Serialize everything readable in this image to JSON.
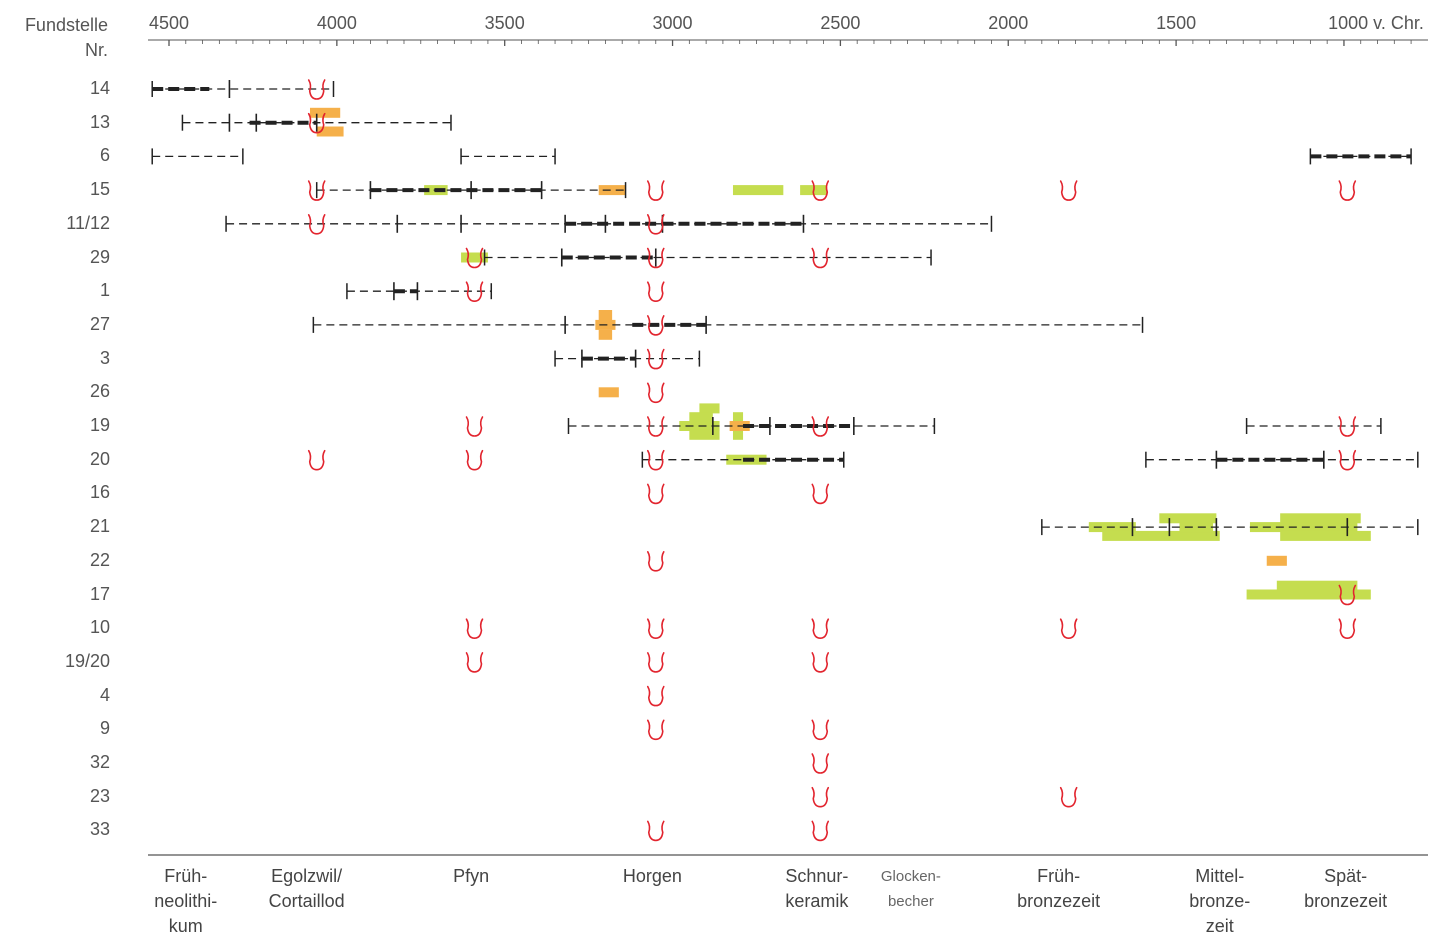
{
  "header": {
    "site_label": "Fundstelle",
    "nr_label": "Nr."
  },
  "axis": {
    "ticks": [
      {
        "year": 4500,
        "label": "4500"
      },
      {
        "year": 4000,
        "label": "4000"
      },
      {
        "year": 3500,
        "label": "3500"
      },
      {
        "year": 3000,
        "label": "3000"
      },
      {
        "year": 2500,
        "label": "2500"
      },
      {
        "year": 2000,
        "label": "2000"
      },
      {
        "year": 1500,
        "label": "1500"
      },
      {
        "year": 1000,
        "label": "1000 v. Chr."
      }
    ]
  },
  "rows": [
    {
      "id": "14",
      "label": "14"
    },
    {
      "id": "13",
      "label": "13"
    },
    {
      "id": "6",
      "label": "6"
    },
    {
      "id": "15",
      "label": "15"
    },
    {
      "id": "11/12",
      "label": "11/12"
    },
    {
      "id": "29",
      "label": "29"
    },
    {
      "id": "1",
      "label": "1"
    },
    {
      "id": "27",
      "label": "27"
    },
    {
      "id": "3",
      "label": "3"
    },
    {
      "id": "26",
      "label": "26"
    },
    {
      "id": "19",
      "label": "19"
    },
    {
      "id": "20",
      "label": "20"
    },
    {
      "id": "16",
      "label": "16"
    },
    {
      "id": "21",
      "label": "21"
    },
    {
      "id": "22",
      "label": "22"
    },
    {
      "id": "17",
      "label": "17"
    },
    {
      "id": "10",
      "label": "10"
    },
    {
      "id": "19/20",
      "label": "19/20"
    },
    {
      "id": "4",
      "label": "4"
    },
    {
      "id": "9",
      "label": "9"
    },
    {
      "id": "32",
      "label": "32"
    },
    {
      "id": "23",
      "label": "23"
    },
    {
      "id": "33",
      "label": "33"
    }
  ],
  "periods": [
    {
      "label": "Früh-\nneolithi-\nkum",
      "year": 4450,
      "small": false
    },
    {
      "label": "Egolzwil/\nCortaillod",
      "year": 4090,
      "small": false
    },
    {
      "label": "Pfyn",
      "year": 3600,
      "small": false
    },
    {
      "label": "Horgen",
      "year": 3060,
      "small": false
    },
    {
      "label": "Schnur-\nkeramik",
      "year": 2570,
      "small": false
    },
    {
      "label": "Glocken-\nbecher",
      "year": 2290,
      "small": true
    },
    {
      "label": "Früh-\nbronzezeit",
      "year": 1850,
      "small": false
    },
    {
      "label": "Mittel-\nbronze-\nzeit",
      "year": 1370,
      "small": false
    },
    {
      "label": "Spät-\nbronzezeit",
      "year": 995,
      "small": false
    }
  ],
  "colors": {
    "range": "#222222",
    "vessel": "#e2242e",
    "dendro_orange": "#f5b04a",
    "dendro_green": "#c5dd4f"
  },
  "ranges": [
    {
      "row": 0,
      "from": 4550,
      "to": 4010,
      "ticks": [
        4320
      ],
      "thick": [
        [
          4550,
          4380
        ]
      ]
    },
    {
      "row": 1,
      "from": 4460,
      "to": 3660,
      "ticks": [
        4320,
        4240,
        4060
      ],
      "thick": [
        [
          4260,
          4060
        ]
      ]
    },
    {
      "row": 2,
      "from": 4550,
      "to": 4280,
      "ticks": [],
      "thick": []
    },
    {
      "row": 2,
      "from": 3630,
      "to": 3350,
      "ticks": [],
      "thick": []
    },
    {
      "row": 2,
      "from": 1100,
      "to": 800,
      "ticks": [],
      "thick": [
        [
          1100,
          800
        ]
      ]
    },
    {
      "row": 3,
      "from": 4060,
      "to": 3140,
      "ticks": [
        3900,
        3600,
        3390
      ],
      "thick": [
        [
          3900,
          3390
        ]
      ]
    },
    {
      "row": 4,
      "from": 4330,
      "to": 2050,
      "ticks": [
        3820,
        3630,
        3320,
        3200,
        3030,
        2610
      ],
      "thick": [
        [
          3320,
          3030
        ],
        [
          3030,
          2610
        ]
      ]
    },
    {
      "row": 5,
      "from": 3560,
      "to": 2230,
      "ticks": [
        3330,
        3050
      ],
      "thick": [
        [
          3330,
          3050
        ]
      ]
    },
    {
      "row": 6,
      "from": 3970,
      "to": 3540,
      "ticks": [
        3830,
        3760
      ],
      "thick": [
        [
          3830,
          3760
        ]
      ]
    },
    {
      "row": 7,
      "from": 4070,
      "to": 1600,
      "ticks": [
        3320,
        2900
      ],
      "thick": [
        [
          3120,
          2900
        ]
      ]
    },
    {
      "row": 8,
      "from": 3350,
      "to": 2920,
      "ticks": [
        3270,
        3110
      ],
      "thick": [
        [
          3270,
          3110
        ]
      ]
    },
    {
      "row": 10,
      "from": 3310,
      "to": 2220,
      "ticks": [
        2880,
        2710,
        2460
      ],
      "thick": [
        [
          2790,
          2460
        ]
      ]
    },
    {
      "row": 10,
      "from": 1290,
      "to": 890,
      "ticks": [],
      "thick": []
    },
    {
      "row": 11,
      "from": 3090,
      "to": 2490,
      "ticks": [],
      "thick": [
        [
          2790,
          2490
        ]
      ]
    },
    {
      "row": 11,
      "from": 1590,
      "to": 780,
      "ticks": [
        1380,
        1060
      ],
      "thick": [
        [
          1380,
          1060
        ]
      ]
    },
    {
      "row": 13,
      "from": 1900,
      "to": 780,
      "ticks": [
        1630,
        1520,
        1380,
        990
      ],
      "thick": []
    }
  ],
  "dendro_bars": [
    {
      "row": 1,
      "from": 4080,
      "to": 3990,
      "offset": -0.45,
      "color": "orange"
    },
    {
      "row": 1,
      "from": 4060,
      "to": 3980,
      "offset": 0.4,
      "color": "orange"
    },
    {
      "row": 3,
      "from": 3220,
      "to": 3140,
      "offset": 0,
      "color": "orange"
    },
    {
      "row": 3,
      "from": 3740,
      "to": 3670,
      "offset": 0,
      "color": "green"
    },
    {
      "row": 3,
      "from": 2820,
      "to": 2670,
      "offset": 0,
      "color": "green"
    },
    {
      "row": 3,
      "from": 2620,
      "to": 2540,
      "offset": 0,
      "color": "green"
    },
    {
      "row": 5,
      "from": 3630,
      "to": 3550,
      "offset": 0,
      "color": "green"
    },
    {
      "row": 7,
      "from": 3230,
      "to": 3170,
      "offset": 0,
      "color": "orange"
    },
    {
      "row": 7,
      "from": 3220,
      "to": 3180,
      "offset": -0.45,
      "color": "orange"
    },
    {
      "row": 7,
      "from": 3220,
      "to": 3180,
      "offset": 0.45,
      "color": "orange"
    },
    {
      "row": 9,
      "from": 3220,
      "to": 3160,
      "offset": 0,
      "color": "orange"
    },
    {
      "row": 10,
      "from": 2920,
      "to": 2860,
      "offset": -0.8,
      "color": "green"
    },
    {
      "row": 10,
      "from": 2950,
      "to": 2880,
      "offset": -0.4,
      "color": "green"
    },
    {
      "row": 10,
      "from": 2980,
      "to": 2860,
      "offset": 0,
      "color": "green"
    },
    {
      "row": 10,
      "from": 2950,
      "to": 2860,
      "offset": 0.4,
      "color": "green"
    },
    {
      "row": 10,
      "from": 2820,
      "to": 2790,
      "offset": -0.4,
      "color": "green"
    },
    {
      "row": 10,
      "from": 2820,
      "to": 2790,
      "offset": 0.4,
      "color": "green"
    },
    {
      "row": 10,
      "from": 2830,
      "to": 2770,
      "offset": 0,
      "color": "orange"
    },
    {
      "row": 11,
      "from": 2840,
      "to": 2720,
      "offset": 0,
      "color": "green"
    },
    {
      "row": 13,
      "from": 1760,
      "to": 1620,
      "offset": 0,
      "color": "green"
    },
    {
      "row": 13,
      "from": 1720,
      "to": 1370,
      "offset": 0.4,
      "color": "green"
    },
    {
      "row": 13,
      "from": 1550,
      "to": 1380,
      "offset": -0.4,
      "color": "green"
    },
    {
      "row": 13,
      "from": 1490,
      "to": 1390,
      "offset": 0,
      "color": "green"
    },
    {
      "row": 13,
      "from": 1190,
      "to": 950,
      "offset": -0.4,
      "color": "green"
    },
    {
      "row": 13,
      "from": 1280,
      "to": 960,
      "offset": 0,
      "color": "green"
    },
    {
      "row": 13,
      "from": 1190,
      "to": 920,
      "offset": 0.4,
      "color": "green"
    },
    {
      "row": 14,
      "from": 1230,
      "to": 1170,
      "offset": 0,
      "color": "orange"
    },
    {
      "row": 15,
      "from": 1200,
      "to": 960,
      "offset": -0.4,
      "color": "green"
    },
    {
      "row": 15,
      "from": 1290,
      "to": 920,
      "offset": 0,
      "color": "green"
    }
  ],
  "vessels": [
    {
      "row": 0,
      "year": 4060
    },
    {
      "row": 1,
      "year": 4060
    },
    {
      "row": 3,
      "year": 4060
    },
    {
      "row": 3,
      "year": 3050
    },
    {
      "row": 3,
      "year": 2560
    },
    {
      "row": 3,
      "year": 1820
    },
    {
      "row": 3,
      "year": 990
    },
    {
      "row": 4,
      "year": 4060
    },
    {
      "row": 4,
      "year": 3050
    },
    {
      "row": 5,
      "year": 3590
    },
    {
      "row": 5,
      "year": 3050
    },
    {
      "row": 5,
      "year": 2560
    },
    {
      "row": 6,
      "year": 3590
    },
    {
      "row": 6,
      "year": 3050
    },
    {
      "row": 7,
      "year": 3050
    },
    {
      "row": 8,
      "year": 3050
    },
    {
      "row": 9,
      "year": 3050
    },
    {
      "row": 10,
      "year": 3590
    },
    {
      "row": 10,
      "year": 3050
    },
    {
      "row": 10,
      "year": 2560
    },
    {
      "row": 10,
      "year": 990
    },
    {
      "row": 11,
      "year": 4060
    },
    {
      "row": 11,
      "year": 3590
    },
    {
      "row": 11,
      "year": 3050
    },
    {
      "row": 11,
      "year": 990
    },
    {
      "row": 12,
      "year": 3050
    },
    {
      "row": 12,
      "year": 2560
    },
    {
      "row": 14,
      "year": 3050
    },
    {
      "row": 15,
      "year": 990
    },
    {
      "row": 16,
      "year": 3590
    },
    {
      "row": 16,
      "year": 3050
    },
    {
      "row": 16,
      "year": 2560
    },
    {
      "row": 16,
      "year": 1820
    },
    {
      "row": 16,
      "year": 990
    },
    {
      "row": 17,
      "year": 3590
    },
    {
      "row": 17,
      "year": 3050
    },
    {
      "row": 17,
      "year": 2560
    },
    {
      "row": 18,
      "year": 3050
    },
    {
      "row": 19,
      "year": 3050
    },
    {
      "row": 19,
      "year": 2560
    },
    {
      "row": 20,
      "year": 2560
    },
    {
      "row": 21,
      "year": 2560
    },
    {
      "row": 21,
      "year": 1820
    },
    {
      "row": 22,
      "year": 3050
    },
    {
      "row": 22,
      "year": 2560
    }
  ]
}
